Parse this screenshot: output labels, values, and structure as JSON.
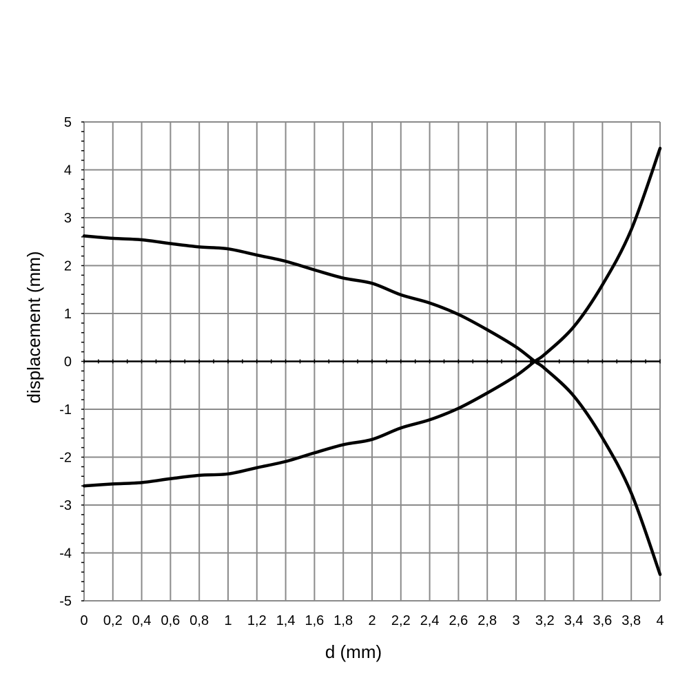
{
  "chart_data": {
    "type": "line",
    "title": "",
    "xlabel": "d (mm)",
    "ylabel": "displacement (mm)",
    "xlim": [
      0,
      4
    ],
    "ylim": [
      -5,
      5
    ],
    "grid": true,
    "legend": "none",
    "x_ticks": [
      "0",
      "0,2",
      "0,4",
      "0,6",
      "0,8",
      "1",
      "1,2",
      "1,4",
      "1,6",
      "1,8",
      "2",
      "2,2",
      "2,4",
      "2,6",
      "2,8",
      "3",
      "3,2",
      "3,4",
      "3,6",
      "3,8",
      "4"
    ],
    "y_ticks": [
      "5",
      "4",
      "3",
      "2",
      "1",
      "0",
      "-1",
      "-2",
      "-3",
      "-4",
      "-5"
    ],
    "x": [
      0,
      0.2,
      0.4,
      0.6,
      0.8,
      1.0,
      1.2,
      1.4,
      1.6,
      1.8,
      2.0,
      2.2,
      2.4,
      2.6,
      2.8,
      3.0,
      3.13,
      3.2,
      3.4,
      3.6,
      3.8,
      4.0
    ],
    "series": [
      {
        "values": [
          2.62,
          2.57,
          2.54,
          2.46,
          2.39,
          2.35,
          2.22,
          2.09,
          1.91,
          1.74,
          1.63,
          1.39,
          1.22,
          0.98,
          0.66,
          0.3,
          0.0,
          -0.15,
          -0.72,
          -1.6,
          -2.75,
          -4.45
        ]
      },
      {
        "values": [
          -2.6,
          -2.56,
          -2.53,
          -2.45,
          -2.38,
          -2.35,
          -2.22,
          -2.09,
          -1.91,
          -1.74,
          -1.63,
          -1.39,
          -1.22,
          -0.98,
          -0.66,
          -0.3,
          0.0,
          0.15,
          0.72,
          1.6,
          2.75,
          4.45
        ]
      }
    ]
  }
}
